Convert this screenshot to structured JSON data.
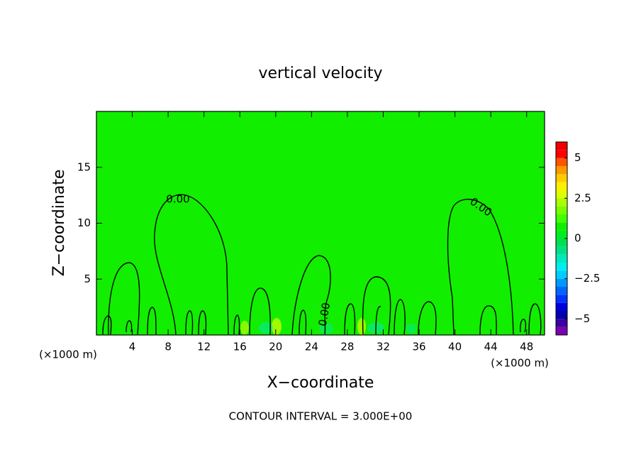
{
  "chart_data": {
    "type": "contour",
    "title": "vertical velocity",
    "x_label": "X−coordinate",
    "y_label": "Z−coordinate",
    "x_unit_left": "(×1000 m)",
    "x_unit_right": "(×1000 m)",
    "footnote": "CONTOUR INTERVAL = 3.000E+00",
    "xlim": [
      0,
      50
    ],
    "xticks": [
      4,
      8,
      12,
      16,
      20,
      24,
      28,
      32,
      36,
      40,
      44,
      48
    ],
    "ylim": [
      0,
      20
    ],
    "yticks": [
      5,
      10,
      15
    ],
    "contour_labels": [
      "0.00",
      "0.00",
      "0.00"
    ],
    "colorbar": {
      "lim": [
        -6,
        6
      ],
      "ticks": [
        {
          "value": -5,
          "label": "−5"
        },
        {
          "value": -2.5,
          "label": "−2.5"
        },
        0,
        2.5,
        5
      ],
      "levels": [
        -6,
        -5.5,
        -5,
        -4.5,
        -4,
        -3.5,
        -3,
        -2.5,
        -2,
        -1.5,
        -1,
        -0.5,
        0,
        0.5,
        1,
        1.5,
        2,
        2.5,
        3,
        3.5,
        4,
        4.5,
        5,
        5.5,
        6
      ],
      "colors": [
        "#7a00b0",
        "#3a00a0",
        "#0000aa",
        "#0000dd",
        "#0033ff",
        "#0066ff",
        "#0099ff",
        "#00ccff",
        "#00eeee",
        "#00e8bb",
        "#00e088",
        "#00e050",
        "#00ee20",
        "#11ee00",
        "#44ff00",
        "#77ff00",
        "#aaff00",
        "#ddff00",
        "#ffee00",
        "#ffcc00",
        "#ff9900",
        "#ff5500",
        "#ff0000",
        "#ee0000",
        "#ff8888"
      ]
    }
  }
}
